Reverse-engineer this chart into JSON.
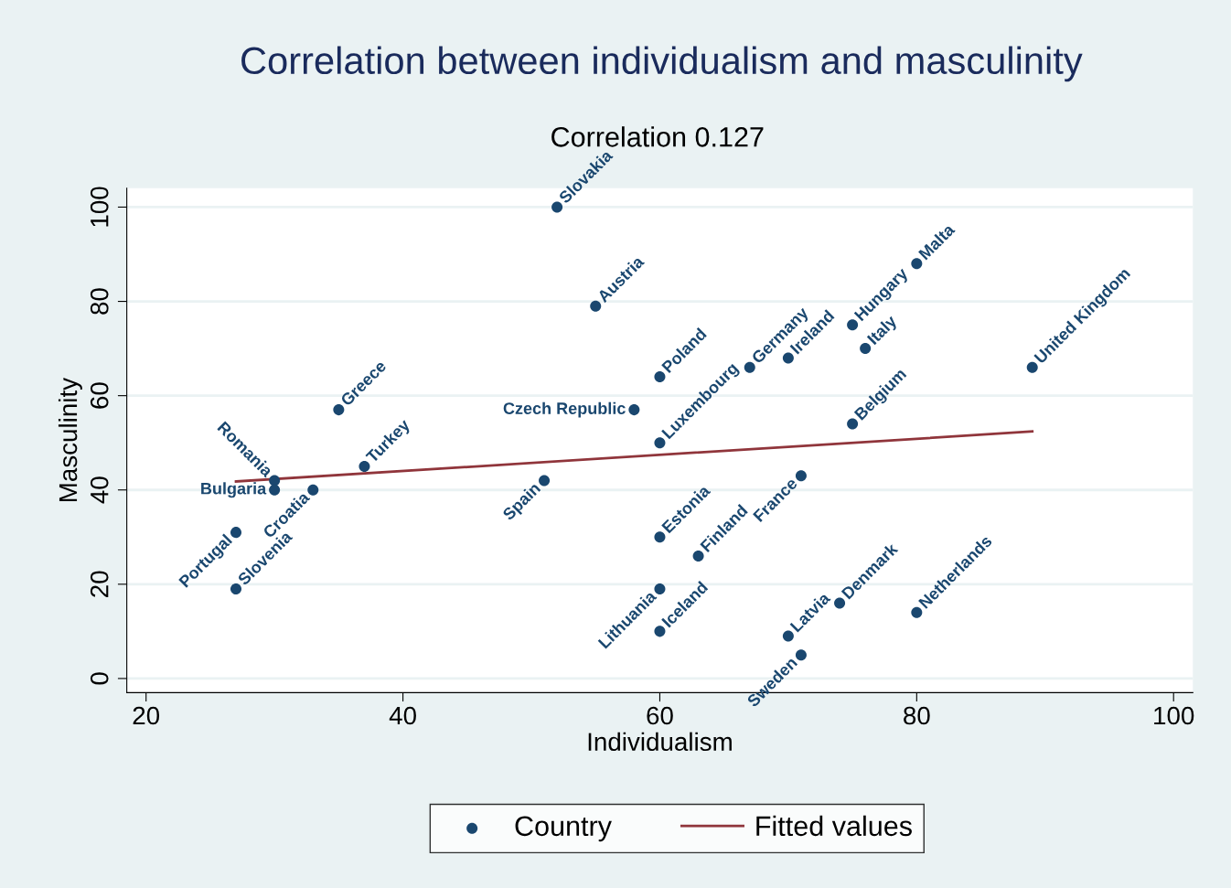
{
  "chart_data": {
    "type": "scatter",
    "title": "Correlation between individualism and masculinity",
    "subtitle": "Correlation 0.127",
    "xlabel": "Individualism",
    "ylabel": "Masculinity",
    "series": [
      {
        "name": "Country",
        "color": "#1a476f",
        "marker": "circle",
        "x": [
          52,
          55,
          80,
          75,
          76,
          70,
          67,
          60,
          60,
          58,
          51,
          71,
          75,
          89,
          35,
          30,
          30,
          27,
          33,
          37,
          27,
          60,
          60,
          60,
          63,
          70,
          71,
          74,
          80
        ],
        "values": [
          100,
          79,
          88,
          75,
          70,
          68,
          66,
          50,
          64,
          57,
          42,
          43,
          54,
          66,
          57,
          42,
          40,
          31,
          40,
          45,
          19,
          30,
          19,
          10,
          26,
          9,
          5,
          16,
          14
        ]
      },
      {
        "name": "Fitted values",
        "type": "line",
        "color": "#90353b",
        "marker": "none",
        "x": [
          27,
          89
        ],
        "values": [
          41.8,
          52.4
        ]
      }
    ],
    "annotations": [
      {
        "text": "Slovakia",
        "x": 52,
        "y": 100
      },
      {
        "text": "Austria",
        "x": 55,
        "y": 79
      },
      {
        "text": "Malta",
        "x": 80,
        "y": 88
      },
      {
        "text": "Hungary",
        "x": 75,
        "y": 75
      },
      {
        "text": "Italy",
        "x": 76,
        "y": 70
      },
      {
        "text": "Ireland",
        "x": 70,
        "y": 68
      },
      {
        "text": "Germany",
        "x": 67,
        "y": 66
      },
      {
        "text": "Luxembourg",
        "x": 60,
        "y": 50
      },
      {
        "text": "Poland",
        "x": 60,
        "y": 64
      },
      {
        "text": "Czech Republic",
        "x": 58,
        "y": 57
      },
      {
        "text": "Spain",
        "x": 51,
        "y": 42
      },
      {
        "text": "France",
        "x": 71,
        "y": 43
      },
      {
        "text": "Belgium",
        "x": 75,
        "y": 54
      },
      {
        "text": "United Kingdom",
        "x": 89,
        "y": 66
      },
      {
        "text": "Greece",
        "x": 35,
        "y": 57
      },
      {
        "text": "Romania",
        "x": 30,
        "y": 42
      },
      {
        "text": "Bulgaria",
        "x": 30,
        "y": 40
      },
      {
        "text": "Portugal",
        "x": 27,
        "y": 31
      },
      {
        "text": "Croatia",
        "x": 33,
        "y": 40
      },
      {
        "text": "Turkey",
        "x": 37,
        "y": 45
      },
      {
        "text": "Slovenia",
        "x": 27,
        "y": 19
      },
      {
        "text": "Estonia",
        "x": 60,
        "y": 30
      },
      {
        "text": "Lithuania",
        "x": 60,
        "y": 19
      },
      {
        "text": "Iceland",
        "x": 60,
        "y": 10
      },
      {
        "text": "Finland",
        "x": 63,
        "y": 26
      },
      {
        "text": "Latvia",
        "x": 70,
        "y": 9
      },
      {
        "text": "Sweden",
        "x": 71,
        "y": 5
      },
      {
        "text": "Denmark",
        "x": 74,
        "y": 16
      },
      {
        "text": "Netherlands",
        "x": 80,
        "y": 14
      }
    ],
    "xlim": [
      18.5,
      101.5
    ],
    "ylim": [
      -3,
      104
    ],
    "xticks": [
      20,
      40,
      60,
      80,
      100
    ],
    "yticks": [
      0,
      20,
      40,
      60,
      80,
      100
    ],
    "grid": "y",
    "legend": "bottom",
    "line_style": "solid"
  }
}
